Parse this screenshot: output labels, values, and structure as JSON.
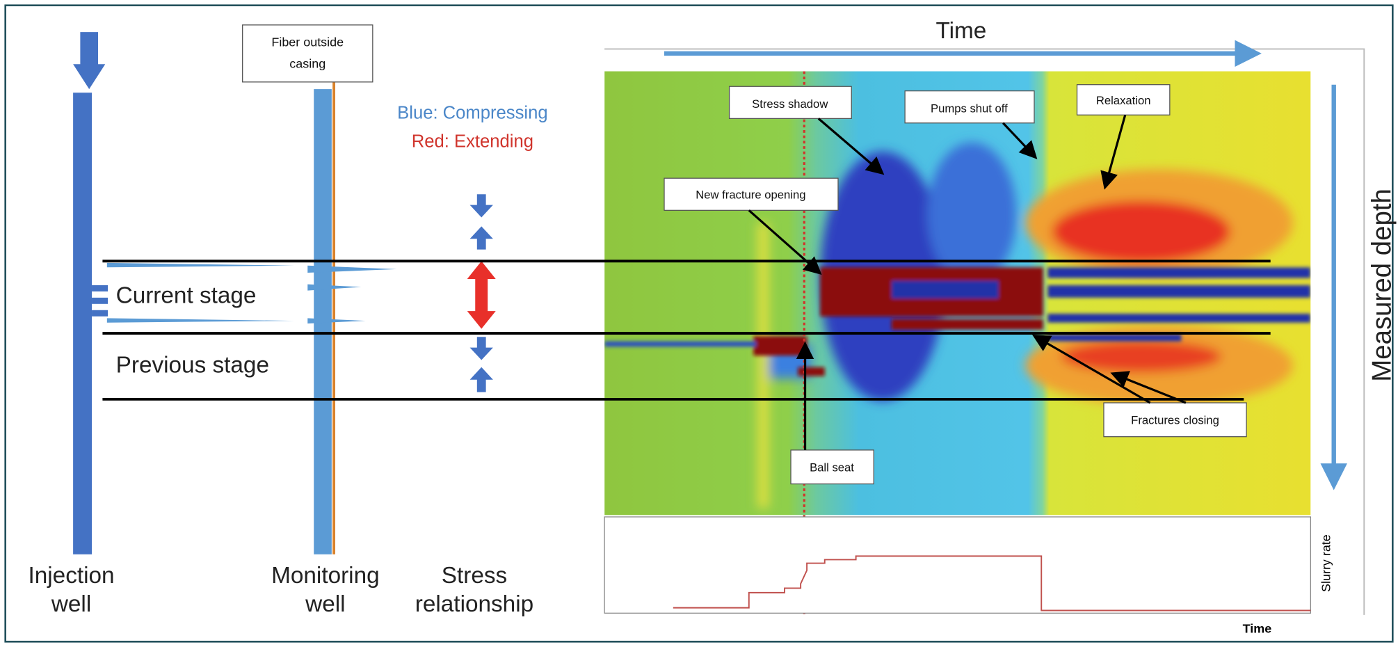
{
  "fiber_box": {
    "lines": [
      "Fiber outside",
      "casing"
    ]
  },
  "legend": {
    "blue": "Blue: Compressing",
    "red": "Red: Extending"
  },
  "stages": {
    "current": "Current stage",
    "previous": "Previous stage"
  },
  "bottom_labels": {
    "injection_well": [
      "Injection",
      "well"
    ],
    "monitoring_well": [
      "Monitoring",
      "well"
    ],
    "stress_relationship": [
      "Stress",
      "relationship"
    ]
  },
  "axes": {
    "time": "Time",
    "measured_depth": "Measured depth",
    "slurry_rate": "Slurry rate",
    "slurry_time": "Time"
  },
  "annotations": {
    "stress_shadow": "Stress shadow",
    "pumps_shut_off": "Pumps shut off",
    "relaxation": "Relaxation",
    "new_fracture_opening": "New fracture opening",
    "ball_seat": "Ball seat",
    "fractures_closing": "Fractures closing"
  }
}
